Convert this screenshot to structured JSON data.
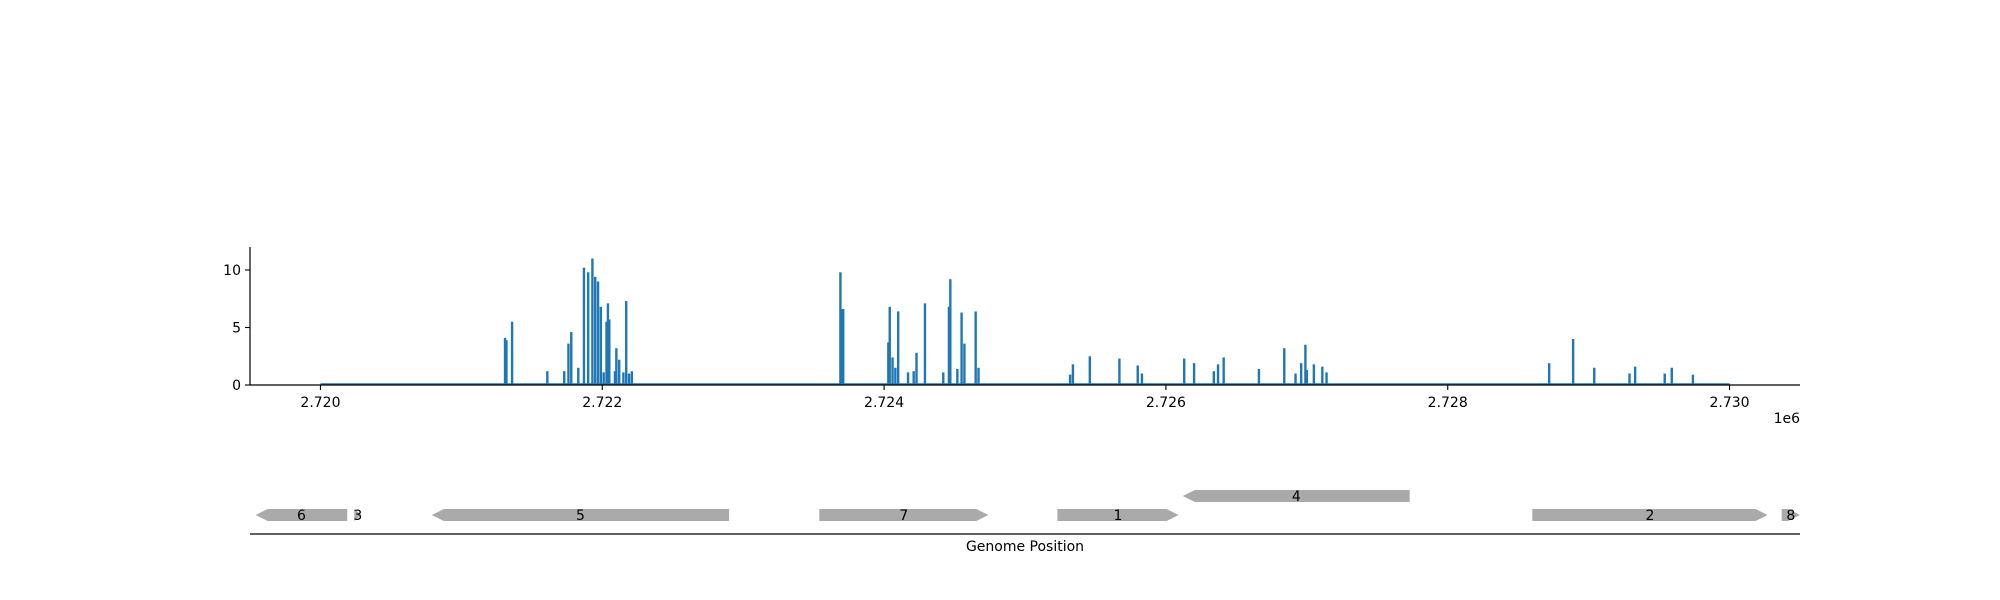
{
  "chart_data": {
    "type": "bar",
    "coverage": {
      "color": "#1f77b4",
      "x_ticks": [
        2720000,
        2722000,
        2724000,
        2726000,
        2728000,
        2730000
      ],
      "x_tick_labels": [
        "2.720",
        "2.722",
        "2.724",
        "2.726",
        "2.728",
        "2.730"
      ],
      "x_offset_label": "1e6",
      "xlim": [
        2719500,
        2730500
      ],
      "ylim": [
        0,
        12
      ],
      "y_ticks": [
        0,
        5,
        10
      ],
      "y_tick_labels": [
        "0",
        "5",
        "10"
      ],
      "baseline_range": [
        2720000,
        2730000
      ],
      "points": [
        [
          2721310,
          4.1
        ],
        [
          2721320,
          3.9
        ],
        [
          2721360,
          5.5
        ],
        [
          2721610,
          1.2
        ],
        [
          2721730,
          1.2
        ],
        [
          2721760,
          3.6
        ],
        [
          2721780,
          4.6
        ],
        [
          2721830,
          1.5
        ],
        [
          2721870,
          10.2
        ],
        [
          2721900,
          9.8
        ],
        [
          2721930,
          11.0
        ],
        [
          2721950,
          9.4
        ],
        [
          2721970,
          9.0
        ],
        [
          2721990,
          6.8
        ],
        [
          2722010,
          1.1
        ],
        [
          2722030,
          5.5
        ],
        [
          2722040,
          7.1
        ],
        [
          2722050,
          5.7
        ],
        [
          2722090,
          1.2
        ],
        [
          2722100,
          3.2
        ],
        [
          2722120,
          2.2
        ],
        [
          2722150,
          1.1
        ],
        [
          2722170,
          7.3
        ],
        [
          2722190,
          1.0
        ],
        [
          2722210,
          1.2
        ],
        [
          2723690,
          9.8
        ],
        [
          2723700,
          6.6
        ],
        [
          2723710,
          6.6
        ],
        [
          2724030,
          3.7
        ],
        [
          2724040,
          6.8
        ],
        [
          2724060,
          2.4
        ],
        [
          2724080,
          1.5
        ],
        [
          2724100,
          6.4
        ],
        [
          2724170,
          1.1
        ],
        [
          2724210,
          1.2
        ],
        [
          2724230,
          2.8
        ],
        [
          2724290,
          7.1
        ],
        [
          2724420,
          1.1
        ],
        [
          2724460,
          6.8
        ],
        [
          2724470,
          9.2
        ],
        [
          2724520,
          1.4
        ],
        [
          2724550,
          6.3
        ],
        [
          2724570,
          3.6
        ],
        [
          2724650,
          6.4
        ],
        [
          2724670,
          1.5
        ],
        [
          2725320,
          0.9
        ],
        [
          2725340,
          1.8
        ],
        [
          2725460,
          2.5
        ],
        [
          2725670,
          2.3
        ],
        [
          2725800,
          1.7
        ],
        [
          2725830,
          1.0
        ],
        [
          2726130,
          2.3
        ],
        [
          2726200,
          1.9
        ],
        [
          2726340,
          1.2
        ],
        [
          2726370,
          1.8
        ],
        [
          2726410,
          2.4
        ],
        [
          2726660,
          1.4
        ],
        [
          2726840,
          3.2
        ],
        [
          2726920,
          1.0
        ],
        [
          2726960,
          1.9
        ],
        [
          2726990,
          3.5
        ],
        [
          2727000,
          1.3
        ],
        [
          2727050,
          1.8
        ],
        [
          2727110,
          1.6
        ],
        [
          2727140,
          1.1
        ],
        [
          2728720,
          1.9
        ],
        [
          2728890,
          4.0
        ],
        [
          2729040,
          1.5
        ],
        [
          2729290,
          1.0
        ],
        [
          2729330,
          1.6
        ],
        [
          2729540,
          1.0
        ],
        [
          2729590,
          1.5
        ],
        [
          2729740,
          0.9
        ]
      ]
    },
    "genes": {
      "color": "#aaaaaa",
      "xlabel": "Genome Position",
      "items": [
        {
          "label": "6",
          "start": 2719540,
          "end": 2720190,
          "strand": "-",
          "row": 0
        },
        {
          "label": "3",
          "start": 2720240,
          "end": 2720290,
          "strand": "+",
          "row": 0
        },
        {
          "label": "5",
          "start": 2720790,
          "end": 2722900,
          "strand": "-",
          "row": 0
        },
        {
          "label": "7",
          "start": 2723540,
          "end": 2724740,
          "strand": "+",
          "row": 0
        },
        {
          "label": "1",
          "start": 2725230,
          "end": 2726090,
          "strand": "+",
          "row": 0
        },
        {
          "label": "4",
          "start": 2726120,
          "end": 2727730,
          "strand": "-",
          "row": 1
        },
        {
          "label": "2",
          "start": 2728600,
          "end": 2730270,
          "strand": "+",
          "row": 0
        },
        {
          "label": "8",
          "start": 2730370,
          "end": 2730500,
          "strand": "+",
          "row": 0
        }
      ]
    }
  }
}
